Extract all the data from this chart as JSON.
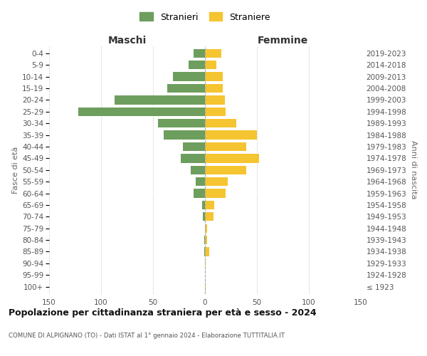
{
  "age_groups": [
    "100+",
    "95-99",
    "90-94",
    "85-89",
    "80-84",
    "75-79",
    "70-74",
    "65-69",
    "60-64",
    "55-59",
    "50-54",
    "45-49",
    "40-44",
    "35-39",
    "30-34",
    "25-29",
    "20-24",
    "15-19",
    "10-14",
    "5-9",
    "0-4"
  ],
  "birth_years": [
    "≤ 1923",
    "1924-1928",
    "1929-1933",
    "1934-1938",
    "1939-1943",
    "1944-1948",
    "1949-1953",
    "1954-1958",
    "1959-1963",
    "1964-1968",
    "1969-1973",
    "1974-1978",
    "1979-1983",
    "1984-1988",
    "1989-1993",
    "1994-1998",
    "1999-2003",
    "2004-2008",
    "2009-2013",
    "2014-2018",
    "2019-2023"
  ],
  "males": [
    0,
    0,
    0,
    1,
    1,
    0,
    2,
    3,
    11,
    9,
    14,
    23,
    21,
    40,
    45,
    122,
    87,
    36,
    31,
    16,
    11
  ],
  "females": [
    1,
    0,
    1,
    4,
    2,
    2,
    8,
    9,
    20,
    22,
    40,
    52,
    40,
    50,
    30,
    20,
    19,
    17,
    17,
    11,
    16
  ],
  "male_color": "#6d9e5e",
  "female_color": "#f5c431",
  "title_main": "Popolazione per cittadinanza straniera per età e sesso - 2024",
  "subtitle": "COMUNE DI ALPIGNANO (TO) - Dati ISTAT al 1° gennaio 2024 - Elaborazione TUTTITALIA.IT",
  "label_maschi": "Maschi",
  "label_femmine": "Femmine",
  "ylabel_left": "Fasce di età",
  "ylabel_right": "Anni di nascita",
  "legend_male": "Stranieri",
  "legend_female": "Straniere",
  "xlim": 150,
  "background_color": "#ffffff",
  "grid_color": "#cccccc",
  "bar_height": 0.75
}
